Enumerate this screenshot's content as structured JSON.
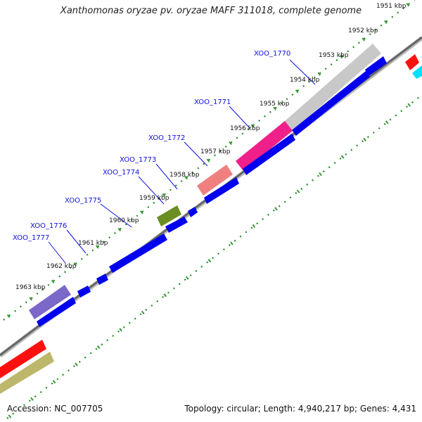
{
  "title": "Xanthomonas oryzae pv. oryzae MAFF 311018, complete genome",
  "footer": {
    "accession": "Accession: NC_007705",
    "summary": "Topology: circular; Length: 4,940,217 bp; Genes: 4,431"
  },
  "kbp_marks": [
    "1951 kbp",
    "1952 kbp",
    "1953 kbp",
    "1954 kbp",
    "1955 kbp",
    "1956 kbp",
    "1957 kbp",
    "1958 kbp",
    "1959 kbp",
    "1960 kbp",
    "1961 kbp",
    "1962 kbp",
    "1963 kbp"
  ],
  "gene_labels": [
    "XOO_1770",
    "XOO_1771",
    "XOO_1772",
    "XOO_1773",
    "XOO_1774",
    "XOO_1775",
    "XOO_1776",
    "XOO_1777"
  ],
  "colors": {
    "cds_forward": "#0000ee",
    "cds_red": "#ff1010",
    "gene_gray": "#c8c8c8",
    "gene_pink": "#f0208a",
    "gene_salmon": "#f08080",
    "gene_olive": "#6b8e23",
    "gene_purple": "#7b68c8",
    "gene_khaki": "#bdb76b",
    "gene_cyan": "#00e0ff",
    "backbone": "#777777",
    "dots": "#228b22"
  }
}
